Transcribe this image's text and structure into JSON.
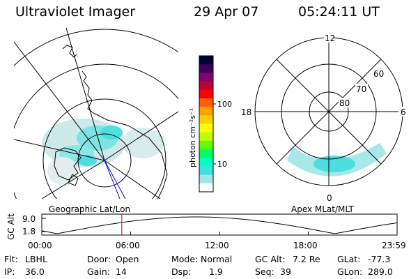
{
  "header": {
    "title": "Ultraviolet Imager",
    "date": "29 Apr 07",
    "time": "05:24:11 UT"
  },
  "left_panel": {
    "caption": "Geographic Lat/Lon"
  },
  "right_panel": {
    "caption": "Apex MLat/MLT",
    "clock_labels": {
      "top": "12",
      "left": "18",
      "right": "6",
      "bottom": "0"
    },
    "lat_labels": [
      "60",
      "70",
      "80"
    ]
  },
  "colorbar": {
    "unit_label": "photon cm⁻²s⁻¹",
    "ticks": [
      "100",
      "10"
    ],
    "colors": [
      "#000033",
      "#400060",
      "#800070",
      "#c00030",
      "#ff0000",
      "#ff6000",
      "#ffa000",
      "#ffd000",
      "#ffff00",
      "#c0ff00",
      "#60ff00",
      "#00ff60",
      "#00ffc0",
      "#40e0e0",
      "#a0e8e8",
      "#ffffff"
    ]
  },
  "timeline": {
    "ylabel": "GC Alt",
    "y_ticks": [
      "9.0",
      "1.8"
    ],
    "x_ticks": [
      "00:00",
      "06:00",
      "12:00",
      "18:00",
      "23:59"
    ],
    "marker_time": "05:24"
  },
  "info": {
    "flt": {
      "label": "Flt:",
      "value": "LBHL"
    },
    "ip": {
      "label": "IP:",
      "value": "36.0"
    },
    "door": {
      "label": "Door:",
      "value": "Open"
    },
    "gain": {
      "label": "Gain:",
      "value": "14"
    },
    "mode": {
      "label": "Mode:",
      "value": "Normal"
    },
    "dsp": {
      "label": "Dsp:",
      "value": "1.9"
    },
    "gcalt": {
      "label": "GC Alt:",
      "value": "7.2 Re"
    },
    "seq": {
      "label": "Seq:",
      "value": "39"
    },
    "glat": {
      "label": "GLat:",
      "value": "-77.3"
    },
    "glon": {
      "label": "GLon:",
      "value": "289.0"
    }
  }
}
